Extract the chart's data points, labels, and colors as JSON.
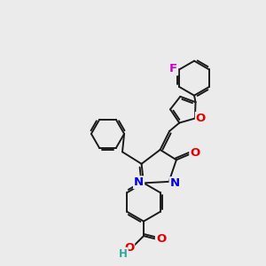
{
  "bg_color": "#ebebeb",
  "bond_color": "#1a1a1a",
  "bond_width": 1.4,
  "atom_colors": {
    "O": "#e00000",
    "N": "#0000dd",
    "F": "#cc00cc",
    "C": "#1a1a1a",
    "H": "#2aa899"
  },
  "font_size": 8.5,
  "figsize": [
    3.0,
    3.0
  ],
  "dpi": 100
}
